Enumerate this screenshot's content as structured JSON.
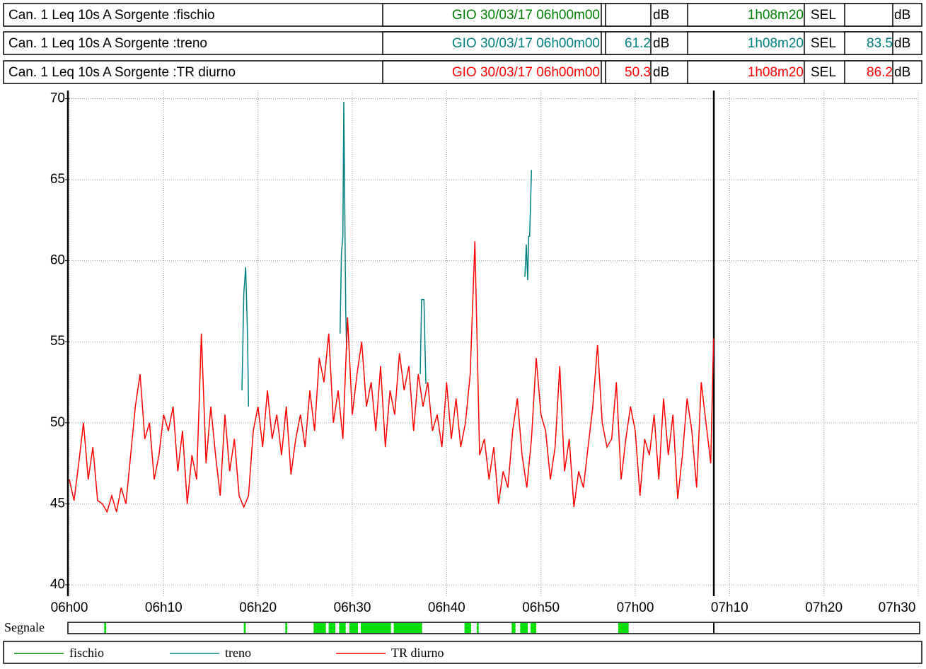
{
  "header_rows": [
    {
      "label": "Can.  1  Leq 10s  A  Sorgente :fischio",
      "date": "GIO 30/03/17 06h00m00",
      "unit": "dB",
      "duration": "1h08m20",
      "sel_label": "SEL",
      "sel_unit": "dB",
      "color": "#008000"
    },
    {
      "label": "Can.  1  Leq 10s  A  Sorgente :treno",
      "date": "GIO 30/03/17 06h00m00",
      "leq": "61.2",
      "unit": "dB",
      "duration": "1h08m20",
      "sel_label": "SEL",
      "sel": "83.5",
      "sel_unit": "dB",
      "color": "#008080"
    },
    {
      "label": "Can.  1  Leq 10s  A  Sorgente :TR diurno",
      "date": "GIO 30/03/17 06h00m00",
      "leq": "50.3",
      "unit": "dB",
      "duration": "1h08m20",
      "sel_label": "SEL",
      "sel": "86.2",
      "sel_unit": "dB",
      "color": "#ff0000"
    }
  ],
  "chart_data": {
    "type": "line",
    "xlim": [
      0,
      90
    ],
    "xticks": [
      {
        "value": 0,
        "label": "06h00"
      },
      {
        "value": 10,
        "label": "06h10"
      },
      {
        "value": 20,
        "label": "06h20"
      },
      {
        "value": 30,
        "label": "06h30"
      },
      {
        "value": 40,
        "label": "06h40"
      },
      {
        "value": 50,
        "label": "06h50"
      },
      {
        "value": 60,
        "label": "07h00"
      },
      {
        "value": 70,
        "label": "07h10"
      },
      {
        "value": 80,
        "label": "07h20"
      },
      {
        "value": 90,
        "label": "07h30"
      }
    ],
    "ylim": [
      39.3,
      70.5
    ],
    "yticks": [
      40,
      45,
      50,
      55,
      60,
      65,
      70
    ],
    "grid": true,
    "cursor_x": 68.33,
    "series": [
      {
        "name": "fischio",
        "color": "#008000",
        "x": [],
        "values": []
      },
      {
        "name": "treno",
        "color": "#008080",
        "x": [
          18.3,
          18.5,
          18.7,
          18.9,
          19.0,
          19.05,
          28.7,
          28.85,
          29.0,
          29.1,
          29.3,
          29.4,
          29.45,
          37.2,
          37.35,
          37.6,
          37.8,
          37.85,
          48.3,
          48.45,
          48.6,
          48.7,
          48.8,
          49.0
        ],
        "values": [
          52,
          58,
          59.6,
          55.2,
          51,
          null,
          55.5,
          60.5,
          61.5,
          69.8,
          57,
          54.5,
          null,
          53,
          57.6,
          57.6,
          52.4,
          null,
          59,
          61,
          58.8,
          61.5,
          61.5,
          65.6
        ]
      },
      {
        "name": "TR diurno",
        "color": "#ff0000",
        "x": [
          0,
          0.5,
          1,
          1.5,
          2,
          2.5,
          3,
          3.5,
          4,
          4.5,
          5,
          5.5,
          6,
          6.5,
          7,
          7.5,
          8,
          8.5,
          9,
          9.5,
          10,
          10.5,
          11,
          11.5,
          12,
          12.5,
          13,
          13.5,
          14,
          14.5,
          15,
          15.5,
          16,
          16.5,
          17,
          17.5,
          18,
          18.5,
          19,
          19.5,
          20,
          20.5,
          21,
          21.5,
          22,
          22.5,
          23,
          23.5,
          24,
          24.5,
          25,
          25.5,
          26,
          26.5,
          27,
          27.5,
          28,
          28.5,
          29,
          29.5,
          30,
          30.5,
          31,
          31.5,
          32,
          32.5,
          33,
          33.5,
          34,
          34.5,
          35,
          35.5,
          36,
          36.5,
          37,
          37.5,
          38,
          38.5,
          39,
          39.5,
          40,
          40.5,
          41,
          41.5,
          42,
          42.5,
          43,
          43.5,
          44,
          44.5,
          45,
          45.5,
          46,
          46.5,
          47,
          47.5,
          48,
          48.5,
          49,
          49.5,
          50,
          50.5,
          51,
          51.5,
          52,
          52.5,
          53,
          53.5,
          54,
          54.5,
          55,
          55.5,
          56,
          56.5,
          57,
          57.5,
          58,
          58.5,
          59,
          59.5,
          60,
          60.5,
          61,
          61.5,
          62,
          62.5,
          63,
          63.5,
          64,
          64.5,
          65,
          65.5,
          66,
          66.5,
          67,
          67.5,
          68,
          68.3
        ],
        "values": [
          46.5,
          45.2,
          47.5,
          50,
          46.5,
          48.5,
          45.2,
          45,
          44.5,
          45.5,
          44.5,
          46,
          45,
          48,
          51,
          53,
          49,
          50,
          46.5,
          48,
          50.5,
          49.5,
          51,
          47,
          49.5,
          45,
          48,
          46.5,
          55.5,
          47.5,
          51,
          48,
          45.5,
          50.5,
          47,
          49,
          45.5,
          44.8,
          45.5,
          49.5,
          51,
          48.5,
          52,
          49,
          50.5,
          48,
          51,
          46.8,
          49,
          50.5,
          48.5,
          52,
          49.5,
          54,
          52.5,
          55.5,
          50,
          52,
          49,
          56.5,
          50.5,
          53,
          55,
          51,
          52.5,
          49.5,
          53.5,
          48.5,
          52,
          50.5,
          54.3,
          52,
          53.5,
          49.5,
          53,
          51,
          52.5,
          49.5,
          50.5,
          48.5,
          52.5,
          49,
          51.5,
          48.5,
          50,
          53,
          61.2,
          48,
          49,
          46.5,
          48.5,
          45,
          47,
          46,
          49.5,
          51.5,
          48,
          46,
          49,
          54,
          50.5,
          49.5,
          46.5,
          48.5,
          53.5,
          47,
          49,
          44.8,
          47,
          46,
          48.5,
          51,
          54.8,
          50,
          48.5,
          49,
          52.5,
          46.5,
          49,
          51,
          49.5,
          45.5,
          49,
          48,
          50.5,
          46.5,
          51.5,
          48,
          50.5,
          45.3,
          48,
          51.5,
          49.5,
          46,
          52.5,
          50,
          47.5,
          55.2
        ]
      }
    ],
    "signal_label": "Segnale",
    "segnale": [
      [
        3.7,
        3.9
      ],
      [
        18.5,
        18.7
      ],
      [
        22.9,
        23.1
      ],
      [
        25.9,
        27.2
      ],
      [
        27.5,
        28.2
      ],
      [
        28.6,
        29.3
      ],
      [
        29.7,
        30.6
      ],
      [
        30.9,
        34.1
      ],
      [
        34.4,
        37.4
      ],
      [
        41.9,
        42.6
      ],
      [
        43.2,
        43.4
      ],
      [
        46.9,
        47.3
      ],
      [
        47.8,
        48.6
      ],
      [
        48.9,
        49.5
      ],
      [
        58.2,
        59.3
      ]
    ]
  }
}
